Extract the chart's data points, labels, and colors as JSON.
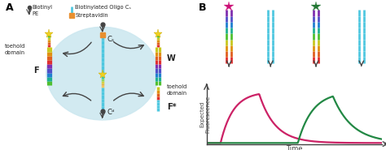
{
  "bg_color": "#ffffff",
  "panel_A_label": "A",
  "panel_B_label": "B",
  "ellipse_color": "#cde8f0",
  "Fred_color": "#cc1177",
  "Fgreen_color": "#227733",
  "curve_pink_color": "#cc2266",
  "curve_green_color": "#228844",
  "axis_color": "#444444",
  "time_label": "Time",
  "y_label": "Expected\nFluorescence",
  "rainbow_colors": [
    "#e03030",
    "#e06020",
    "#e09010",
    "#c8c820",
    "#50c030",
    "#20b090",
    "#2080d0",
    "#5050c8",
    "#8030b0"
  ],
  "cyan_color": "#50c8e0",
  "blue_color": "#5090e0",
  "orange_color": "#e89030",
  "yellow_star_color": "#f0d020",
  "dark_color": "#444444",
  "toehold_red_colors": [
    "#e03030",
    "#e06020",
    "#e09010",
    "#c8c820"
  ],
  "strand_lw": 2.2,
  "arrow_lw": 1.0,
  "legend_fontsize": 4.8,
  "label_fontsize": 5.5
}
